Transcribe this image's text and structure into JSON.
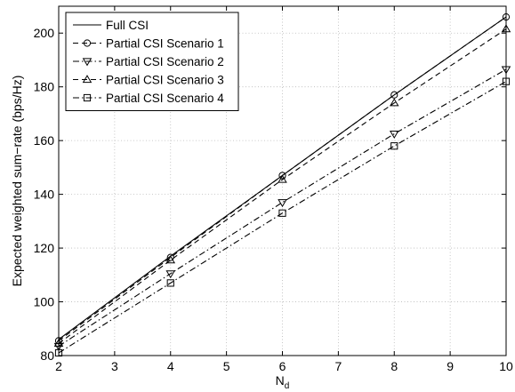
{
  "chart_data": {
    "type": "line",
    "xlabel": "N",
    "xlabel_subscript": "d",
    "ylabel": "Expected weighted sum−rate (bps/Hz)",
    "xlim": [
      2,
      10
    ],
    "ylim": [
      80,
      210
    ],
    "x_ticks": [
      "2",
      "3",
      "4",
      "5",
      "6",
      "7",
      "8",
      "9",
      "10"
    ],
    "y_ticks": [
      "80",
      "100",
      "120",
      "140",
      "160",
      "180",
      "200"
    ],
    "grid": true,
    "legend_position": "top-left",
    "x": [
      2,
      4,
      6,
      8,
      10
    ],
    "series": [
      {
        "name": "Full CSI",
        "values": [
          86,
          117,
          147,
          177,
          206
        ],
        "line_style": "solid",
        "marker": "none",
        "color": "#000000"
      },
      {
        "name": "Partial CSI Scenario 1",
        "values": [
          85.5,
          116.5,
          147,
          177,
          206
        ],
        "line_style": "dashed",
        "marker": "circle",
        "color": "#000000"
      },
      {
        "name": "Partial CSI Scenario 2",
        "values": [
          83.5,
          110.5,
          137,
          162.5,
          186.5
        ],
        "line_style": "dashdot",
        "marker": "triangle-down",
        "color": "#000000"
      },
      {
        "name": "Partial CSI Scenario 3",
        "values": [
          84.5,
          115.5,
          145.5,
          174,
          201.5
        ],
        "line_style": "dashed",
        "marker": "triangle-up",
        "color": "#000000"
      },
      {
        "name": "Partial CSI Scenario 4",
        "values": [
          81,
          107,
          133,
          158,
          182
        ],
        "line_style": "dashdot",
        "marker": "square",
        "color": "#000000"
      }
    ]
  }
}
